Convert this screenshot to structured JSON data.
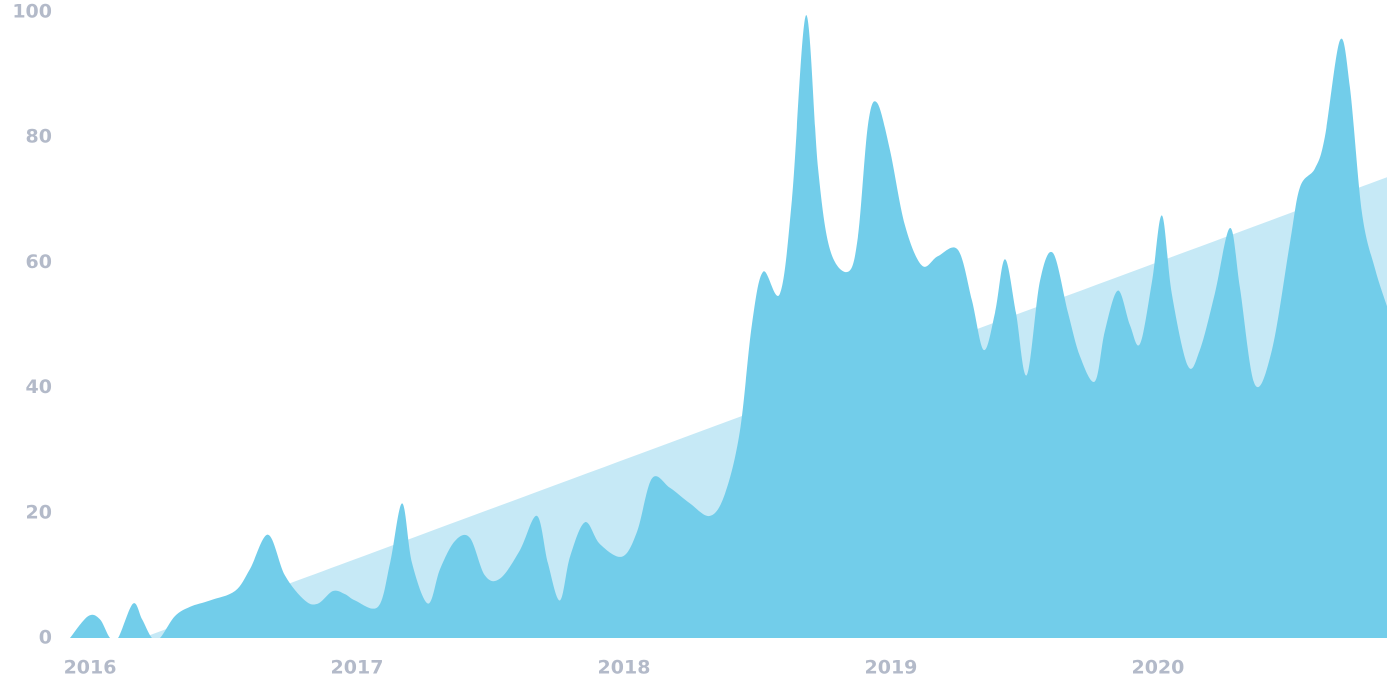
{
  "chart_data": {
    "type": "area",
    "series": [
      {
        "color": "#c6e9f6",
        "x": [
          2016.195,
          2020.858
        ],
        "values": [
          0,
          73.6
        ]
      },
      {
        "color": "#72cdea",
        "x": [
          2015.925,
          2015.993,
          2016.037,
          2016.075,
          2016.105,
          2016.161,
          2016.195,
          2016.232,
          2016.262,
          2016.318,
          2016.375,
          2016.449,
          2016.543,
          2016.599,
          2016.667,
          2016.73,
          2016.805,
          2016.854,
          2016.91,
          2016.955,
          2016.993,
          2017.079,
          2017.124,
          2017.169,
          2017.206,
          2017.266,
          2017.311,
          2017.367,
          2017.423,
          2017.479,
          2017.536,
          2017.61,
          2017.674,
          2017.715,
          2017.76,
          2017.798,
          2017.854,
          2017.91,
          2017.993,
          2018.049,
          2018.105,
          2018.172,
          2018.247,
          2018.322,
          2018.378,
          2018.434,
          2018.479,
          2018.521,
          2018.584,
          2018.629,
          2018.682,
          2018.727,
          2018.772,
          2018.839,
          2018.876,
          2018.914,
          2018.948,
          2018.996,
          2019.052,
          2019.116,
          2019.176,
          2019.251,
          2019.303,
          2019.348,
          2019.39,
          2019.427,
          2019.468,
          2019.509,
          2019.558,
          2019.607,
          2019.663,
          2019.708,
          2019.764,
          2019.801,
          2019.85,
          2019.895,
          2019.933,
          2019.978,
          2020.015,
          2020.052,
          2020.112,
          2020.157,
          2020.213,
          2020.27,
          2020.307,
          2020.363,
          2020.427,
          2020.494,
          2020.532,
          2020.588,
          2020.625,
          2020.682,
          2020.719,
          2020.764,
          2020.813,
          2020.858
        ],
        "values": [
          0,
          3.5,
          3,
          0,
          0,
          5.5,
          3,
          0,
          0,
          3.5,
          5,
          6,
          7.5,
          11,
          16.5,
          10,
          6,
          5.5,
          7.5,
          7,
          6,
          5,
          12,
          21.5,
          12,
          5.5,
          11,
          15.5,
          16,
          10,
          9.5,
          14,
          19.5,
          12,
          6,
          13,
          18.5,
          15,
          13,
          17,
          25.5,
          24,
          21.5,
          19.5,
          23,
          33,
          50,
          58.5,
          55,
          70,
          99.5,
          75,
          62,
          58.5,
          64,
          82,
          85.5,
          78,
          66,
          59.5,
          61,
          62,
          54,
          46,
          52,
          60.5,
          52,
          42,
          57,
          61.5,
          52,
          45,
          41,
          49,
          55.5,
          50,
          47,
          57,
          67.5,
          55,
          43.5,
          46,
          55,
          65.5,
          56,
          40.5,
          46,
          63,
          72,
          75,
          80,
          95.5,
          88,
          68,
          59,
          53
        ]
      }
    ],
    "xlim": [
      2015.925,
      2020.858
    ],
    "xticks": [
      2016,
      2017,
      2018,
      2019,
      2020
    ],
    "ylim": [
      0,
      100
    ],
    "yticks": [
      0,
      20,
      40,
      60,
      80,
      100
    ],
    "grid": false
  }
}
